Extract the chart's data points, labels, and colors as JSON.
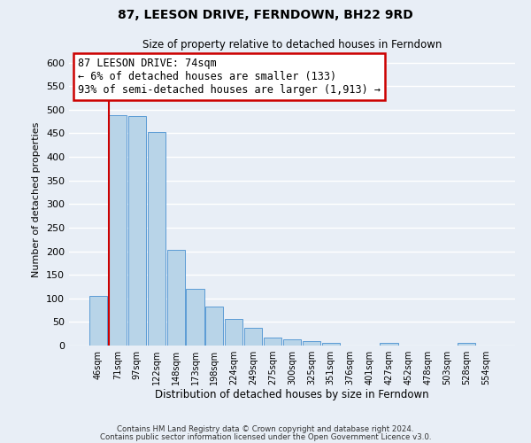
{
  "title": "87, LEESON DRIVE, FERNDOWN, BH22 9RD",
  "subtitle": "Size of property relative to detached houses in Ferndown",
  "xlabel": "Distribution of detached houses by size in Ferndown",
  "ylabel": "Number of detached properties",
  "bar_labels": [
    "46sqm",
    "71sqm",
    "97sqm",
    "122sqm",
    "148sqm",
    "173sqm",
    "198sqm",
    "224sqm",
    "249sqm",
    "275sqm",
    "300sqm",
    "325sqm",
    "351sqm",
    "376sqm",
    "401sqm",
    "427sqm",
    "452sqm",
    "478sqm",
    "503sqm",
    "528sqm",
    "554sqm"
  ],
  "bar_values": [
    105,
    488,
    487,
    452,
    202,
    120,
    82,
    56,
    38,
    16,
    14,
    10,
    5,
    0,
    0,
    6,
    0,
    0,
    0,
    5,
    0
  ],
  "bar_color": "#b8d4e8",
  "bar_edge_color": "#5b9bd5",
  "ylim": [
    0,
    620
  ],
  "yticks": [
    0,
    50,
    100,
    150,
    200,
    250,
    300,
    350,
    400,
    450,
    500,
    550,
    600
  ],
  "property_line_color": "#cc0000",
  "annotation_text": "87 LEESON DRIVE: 74sqm\n← 6% of detached houses are smaller (133)\n93% of semi-detached houses are larger (1,913) →",
  "annotation_box_color": "#ffffff",
  "annotation_box_edge_color": "#cc0000",
  "footer_line1": "Contains HM Land Registry data © Crown copyright and database right 2024.",
  "footer_line2": "Contains public sector information licensed under the Open Government Licence v3.0.",
  "bg_color": "#e8eef6",
  "grid_color": "#ffffff"
}
